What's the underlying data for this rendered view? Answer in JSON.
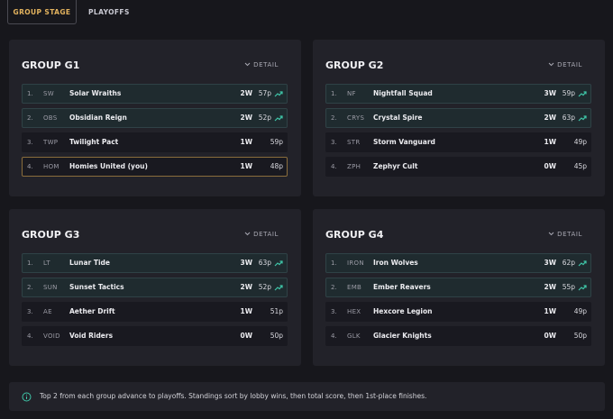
{
  "tabs": [
    "GROUP STAGE",
    "PLAYOFFS"
  ],
  "groups": [
    {
      "title": "GROUP G1",
      "detail": "DETAIL",
      "rows": [
        {
          "rank": "1.",
          "tag": "SW",
          "name": "Solar Wraiths",
          "wins": "2W",
          "points": "57p"
        },
        {
          "rank": "2.",
          "tag": "OBS",
          "name": "Obsidian Reign",
          "wins": "2W",
          "points": "52p"
        },
        {
          "rank": "3.",
          "tag": "TWP",
          "name": "Twilight Pact",
          "wins": "1W",
          "points": "59p"
        },
        {
          "rank": "4.",
          "tag": "HOM",
          "name": "Homies United (you)",
          "wins": "1W",
          "points": "48p"
        }
      ]
    },
    {
      "title": "GROUP G2",
      "detail": "DETAIL",
      "rows": [
        {
          "rank": "1.",
          "tag": "NF",
          "name": "Nightfall Squad",
          "wins": "3W",
          "points": "59p"
        },
        {
          "rank": "2.",
          "tag": "CRYS",
          "name": "Crystal Spire",
          "wins": "2W",
          "points": "63p"
        },
        {
          "rank": "3.",
          "tag": "STR",
          "name": "Storm Vanguard",
          "wins": "1W",
          "points": "49p"
        },
        {
          "rank": "4.",
          "tag": "ZPH",
          "name": "Zephyr Cult",
          "wins": "0W",
          "points": "45p"
        }
      ]
    },
    {
      "title": "GROUP G3",
      "detail": "DETAIL",
      "rows": [
        {
          "rank": "1.",
          "tag": "LT",
          "name": "Lunar Tide",
          "wins": "3W",
          "points": "63p"
        },
        {
          "rank": "2.",
          "tag": "SUN",
          "name": "Sunset Tactics",
          "wins": "2W",
          "points": "52p"
        },
        {
          "rank": "3.",
          "tag": "AE",
          "name": "Aether Drift",
          "wins": "1W",
          "points": "51p"
        },
        {
          "rank": "4.",
          "tag": "VOID",
          "name": "Void Riders",
          "wins": "0W",
          "points": "50p"
        }
      ]
    },
    {
      "title": "GROUP G4",
      "detail": "DETAIL",
      "rows": [
        {
          "rank": "1.",
          "tag": "IRON",
          "name": "Iron Wolves",
          "wins": "3W",
          "points": "62p"
        },
        {
          "rank": "2.",
          "tag": "EMB",
          "name": "Ember Reavers",
          "wins": "2W",
          "points": "55p"
        },
        {
          "rank": "3.",
          "tag": "HEX",
          "name": "Hexcore Legion",
          "wins": "1W",
          "points": "49p"
        },
        {
          "rank": "4.",
          "tag": "GLK",
          "name": "Glacier Knights",
          "wins": "0W",
          "points": "50p"
        }
      ]
    }
  ],
  "info": "Top 2 from each group advance to playoffs. Standings sort by lobby wins, then total score, then 1st-place finishes."
}
